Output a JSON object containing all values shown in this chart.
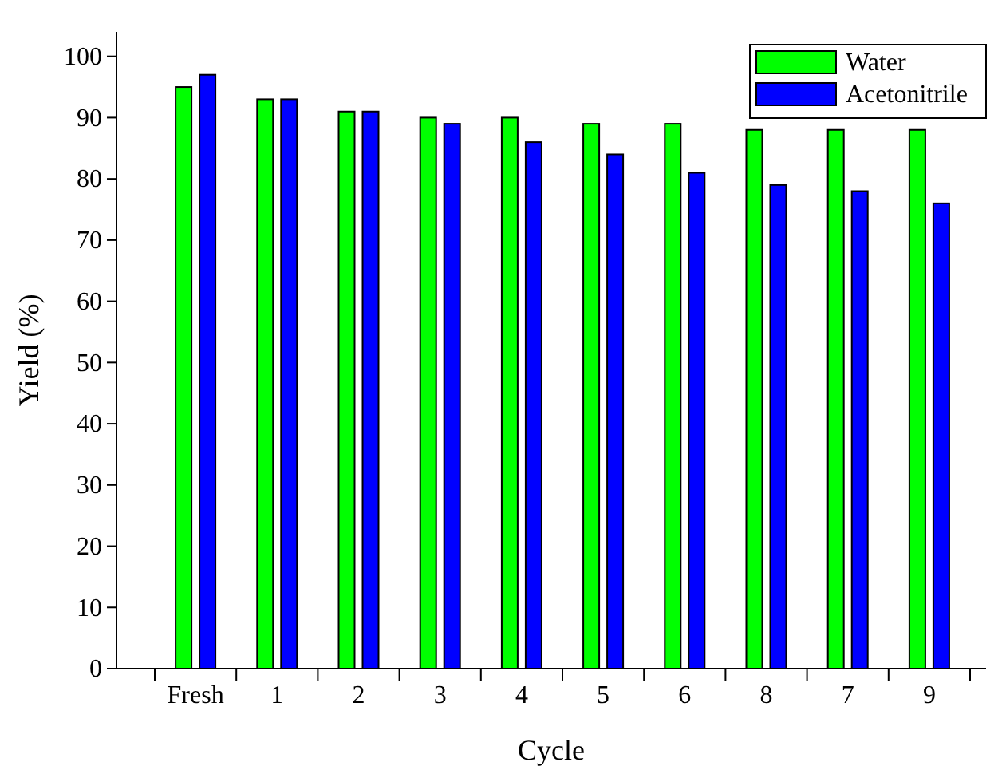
{
  "chart_data": {
    "type": "bar",
    "xlabel": "Cycle",
    "ylabel": "Yield (%)",
    "categories": [
      "Fresh",
      "1",
      "2",
      "3",
      "4",
      "5",
      "6",
      "8",
      "7",
      "9"
    ],
    "series": [
      {
        "name": "Water",
        "color": "#00ff00",
        "values": [
          95,
          93,
          91,
          90,
          90,
          89,
          89,
          88,
          88,
          88
        ]
      },
      {
        "name": "Acetonitrile",
        "color": "#0000ff",
        "values": [
          97,
          93,
          91,
          89,
          86,
          84,
          81,
          79,
          78,
          76
        ]
      }
    ],
    "ylim": [
      0,
      104
    ],
    "yticks": [
      0,
      10,
      20,
      30,
      40,
      50,
      60,
      70,
      80,
      90,
      100
    ],
    "legend": "top right"
  }
}
